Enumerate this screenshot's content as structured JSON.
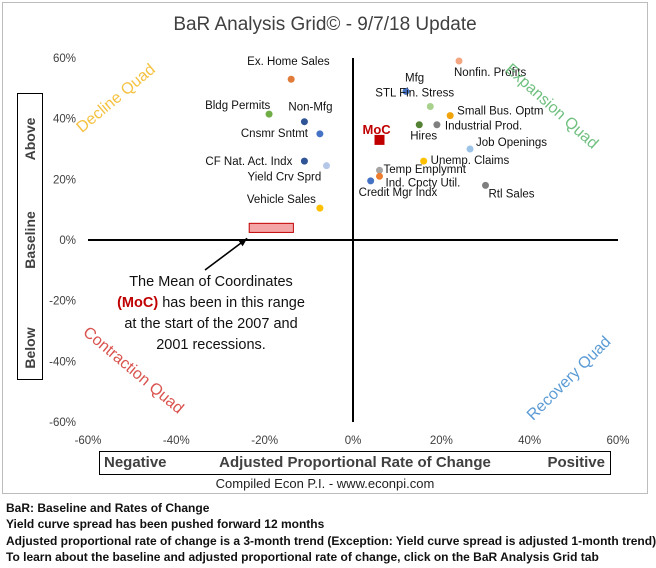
{
  "title": "BaR Analysis Grid© - 9/7/18 Update",
  "y_axis": {
    "above": "Above",
    "baseline": "Baseline",
    "below": "Below"
  },
  "x_axis": {
    "negative": "Negative",
    "label": "Adjusted Proportional Rate of Change",
    "positive": "Positive"
  },
  "credit": "Compiled Econ P.I. - www.econpi.com",
  "quadrants": {
    "decline": {
      "label": "Decline Quad",
      "color": "#f5c242"
    },
    "expansion": {
      "label": "Expansion Quad",
      "color": "#70c080"
    },
    "contraction": {
      "label": "Contraction Quad",
      "color": "#d9534f"
    },
    "recovery": {
      "label": "Recovery Quad",
      "color": "#5b9bd5"
    }
  },
  "annotation": {
    "line1": "The Mean of Coordinates",
    "moc": "(MoC)",
    "rest": " has been in this range at the start of the 2007 and 2001 recessions."
  },
  "footnotes": [
    "BaR: Baseline and Rates of Change",
    "Yield curve spread has been pushed forward 12 months",
    "Adjusted proportional rate of change is a 3-month trend (Exception: Yield curve spread is adjusted 1-month trend)",
    "To learn about the baseline and adjusted proportional rate of change, click on the BaR Analysis Grid tab"
  ],
  "chart_data": {
    "type": "scatter",
    "title": "BaR Analysis Grid© - 9/7/18 Update",
    "xlabel": "Adjusted Proportional Rate of Change",
    "ylabel": "",
    "xlim": [
      -60,
      60
    ],
    "ylim": [
      -60,
      60
    ],
    "x_ticks": [
      "-60%",
      "-40%",
      "-20%",
      "0%",
      "20%",
      "40%",
      "60%"
    ],
    "y_ticks": [
      "60%",
      "40%",
      "20%",
      "0%",
      "-20%",
      "-40%",
      "-60%"
    ],
    "grid": false,
    "moc_range": {
      "x": [
        -23.5,
        -13.5
      ],
      "y": [
        2.5,
        5.5
      ],
      "color": "#f4a6a6"
    },
    "points": [
      {
        "label": "Nonfin. Profits",
        "x": 24,
        "y": 59,
        "color": "#f4a582"
      },
      {
        "label": "Ex. Home Sales",
        "x": -14,
        "y": 53,
        "color": "#e07b39"
      },
      {
        "label": "Mfg",
        "x": 12,
        "y": 49,
        "color": "#4472c4"
      },
      {
        "label": "STL Fin. Stress",
        "x": 17.5,
        "y": 44,
        "color": "#a9d18e"
      },
      {
        "label": "Bldg Permits",
        "x": -19,
        "y": 41.5,
        "color": "#70ad47"
      },
      {
        "label": "Non-Mfg",
        "x": -11,
        "y": 39,
        "color": "#2f5597"
      },
      {
        "label": "Small Bus. Optm",
        "x": 22,
        "y": 41,
        "color": "#f0a30a"
      },
      {
        "label": "Industrial Prod.",
        "x": 19,
        "y": 38,
        "color": "#7f7f7f"
      },
      {
        "label": "Hires",
        "x": 15,
        "y": 38,
        "color": "#548235"
      },
      {
        "label": "Cnsmr Sntmt",
        "x": -7.5,
        "y": 35,
        "color": "#4472c4"
      },
      {
        "label": "MoC",
        "x": 6,
        "y": 33,
        "color": "#c00000"
      },
      {
        "label": "Job Openings",
        "x": 26.5,
        "y": 30,
        "color": "#9dc3e6"
      },
      {
        "label": "CF Nat. Act. Indx",
        "x": -11,
        "y": 26,
        "color": "#2f5597"
      },
      {
        "label": "Unemp. Claims",
        "x": 16,
        "y": 26,
        "color": "#ffc000"
      },
      {
        "label": "Yield Crv Sprd",
        "x": -6,
        "y": 24.5,
        "color": "#b4c7e7"
      },
      {
        "label": "Temp Emplymnt",
        "x": 6,
        "y": 23,
        "color": "#a5a5a5"
      },
      {
        "label": "Ind. Cpcty Util.",
        "x": 6,
        "y": 21,
        "color": "#ed7d31"
      },
      {
        "label": "Credit Mgr Indx",
        "x": 4,
        "y": 19.5,
        "color": "#4472c4"
      },
      {
        "label": "Rtl Sales",
        "x": 30,
        "y": 18,
        "color": "#7f7f7f"
      },
      {
        "label": "Vehicle Sales",
        "x": -7.5,
        "y": 10.5,
        "color": "#ffc000"
      }
    ]
  }
}
